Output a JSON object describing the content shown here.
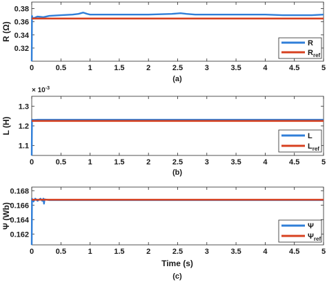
{
  "colors": {
    "estimate": "#2f7ed8",
    "reference": "#d7401f",
    "axis": "#262626"
  },
  "chart_data": [
    {
      "type": "line",
      "caption": "(a)",
      "ylabel": "R (Ω)",
      "xlabel": "",
      "xlim": [
        0,
        5
      ],
      "ylim": [
        0.3,
        0.39
      ],
      "xticks": [
        "0",
        "0.5",
        "1",
        "1.5",
        "2",
        "2.5",
        "3",
        "3.5",
        "4",
        "4.5",
        "5"
      ],
      "yticks": [
        "0.32",
        "0.34",
        "0.36",
        "0.38"
      ],
      "y_multiplier": "",
      "legend_position": "bottom-right",
      "series": [
        {
          "name": "R",
          "legend_main": "R",
          "legend_sub": "",
          "color": "#2f7ed8",
          "x": [
            0,
            0.004,
            0.02,
            0.1,
            0.2,
            0.3,
            0.5,
            0.7,
            0.8,
            0.88,
            0.95,
            1.0,
            1.5,
            2.0,
            2.4,
            2.55,
            2.65,
            2.8,
            3.0,
            3.5,
            4.0,
            4.3,
            4.5,
            4.8,
            5.0
          ],
          "y": [
            0.3,
            0.369,
            0.365,
            0.368,
            0.367,
            0.369,
            0.37,
            0.371,
            0.372,
            0.374,
            0.372,
            0.371,
            0.371,
            0.371,
            0.372,
            0.373,
            0.372,
            0.371,
            0.371,
            0.371,
            0.371,
            0.37,
            0.37,
            0.37,
            0.371
          ]
        },
        {
          "name": "R_ref",
          "legend_main": "R",
          "legend_sub": "ref",
          "color": "#d7401f",
          "x": [
            0,
            5
          ],
          "y": [
            0.365,
            0.365
          ]
        }
      ]
    },
    {
      "type": "line",
      "caption": "(b)",
      "ylabel": "L (H)",
      "xlabel": "",
      "xlim": [
        0,
        5
      ],
      "ylim": [
        1.05,
        1.35
      ],
      "xticks": [
        "0",
        "0.5",
        "1",
        "1.5",
        "2",
        "2.5",
        "3",
        "3.5",
        "4",
        "4.5",
        "5"
      ],
      "yticks": [
        "1.1",
        "1.2",
        "1.3"
      ],
      "y_multiplier": "× 10",
      "y_multiplier_exp": "-3",
      "legend_position": "bottom-right",
      "series": [
        {
          "name": "L",
          "legend_main": "L",
          "legend_sub": "",
          "color": "#2f7ed8",
          "x": [
            0,
            0.004,
            0.02,
            0.1,
            0.5,
            1.0,
            2.0,
            3.0,
            4.0,
            5.0
          ],
          "y": [
            1.05,
            1.232,
            1.23,
            1.231,
            1.231,
            1.231,
            1.231,
            1.231,
            1.231,
            1.231
          ]
        },
        {
          "name": "L_ref",
          "legend_main": "L",
          "legend_sub": "ref",
          "color": "#d7401f",
          "x": [
            0,
            5
          ],
          "y": [
            1.225,
            1.225
          ]
        }
      ]
    },
    {
      "type": "line",
      "caption": "(c)",
      "ylabel": "Ψ (Wb)",
      "xlabel": "Time (s)",
      "xlim": [
        0,
        5
      ],
      "ylim": [
        0.1605,
        0.1685
      ],
      "xticks": [
        "0",
        "0.5",
        "1",
        "1.5",
        "2",
        "2.5",
        "3",
        "3.5",
        "4",
        "4.5",
        "5"
      ],
      "yticks": [
        "0.162",
        "0.164",
        "0.166",
        "0.168"
      ],
      "y_multiplier": "",
      "legend_position": "bottom-right",
      "series": [
        {
          "name": "Ψ",
          "legend_main": "Ψ",
          "legend_sub": "",
          "color": "#2f7ed8",
          "x": [
            0,
            0.004,
            0.03,
            0.06,
            0.1,
            0.15,
            0.18,
            0.2,
            0.21,
            0.22,
            0.3,
            0.5,
            1.0,
            1.5,
            2.0,
            2.5,
            3.0,
            3.5,
            4.0,
            4.5,
            5.0
          ],
          "y": [
            0.1605,
            0.1669,
            0.1665,
            0.1669,
            0.1666,
            0.1669,
            0.1666,
            0.1669,
            0.1662,
            0.1668,
            0.1667,
            0.1667,
            0.1667,
            0.1667,
            0.1667,
            0.1667,
            0.1667,
            0.1667,
            0.1667,
            0.1667,
            0.1667
          ]
        },
        {
          "name": "Ψ_ref",
          "legend_main": "Ψ",
          "legend_sub": "ref",
          "color": "#d7401f",
          "x": [
            0,
            5
          ],
          "y": [
            0.16675,
            0.16675
          ]
        }
      ]
    }
  ]
}
